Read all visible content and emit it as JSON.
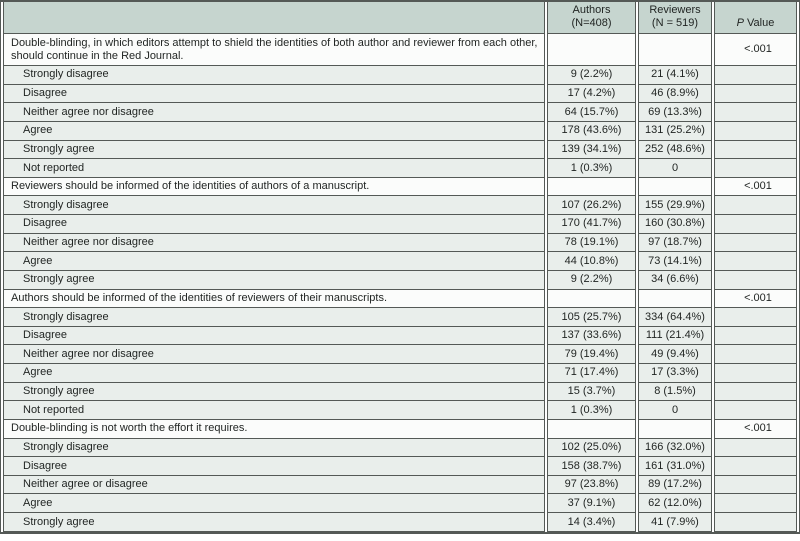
{
  "colors": {
    "header_bg": "#c6d5cf",
    "data_row_bg": "#e9eeeb",
    "section_row_bg": "#fbfcfb",
    "border": "#545956",
    "text": "#1f2321"
  },
  "table": {
    "header": {
      "question_column": "",
      "authors_line1": "Authors",
      "authors_line2": "(N=408)",
      "reviewers_line1": "Reviewers",
      "reviewers_line2": "(N = 519)",
      "p_value_italic": "P",
      "p_value_rest": " Value"
    },
    "sections": [
      {
        "statement": "Double-blinding, in which editors attempt to shield the identities of both author and reviewer from each other, should continue in the Red Journal.",
        "p_value": "<.001",
        "rows": [
          {
            "label": "Strongly disagree",
            "authors": "9 (2.2%)",
            "reviewers": "21 (4.1%)"
          },
          {
            "label": "Disagree",
            "authors": "17 (4.2%)",
            "reviewers": "46 (8.9%)"
          },
          {
            "label": "Neither agree nor disagree",
            "authors": "64 (15.7%)",
            "reviewers": "69 (13.3%)"
          },
          {
            "label": "Agree",
            "authors": "178 (43.6%)",
            "reviewers": "131 (25.2%)"
          },
          {
            "label": "Strongly agree",
            "authors": "139 (34.1%)",
            "reviewers": "252 (48.6%)"
          },
          {
            "label": "Not reported",
            "authors": "1 (0.3%)",
            "reviewers": "0"
          }
        ]
      },
      {
        "statement": "Reviewers should be informed of the identities of authors of a manuscript.",
        "p_value": "<.001",
        "rows": [
          {
            "label": "Strongly disagree",
            "authors": "107 (26.2%)",
            "reviewers": "155 (29.9%)"
          },
          {
            "label": "Disagree",
            "authors": "170 (41.7%)",
            "reviewers": "160 (30.8%)"
          },
          {
            "label": "Neither agree nor disagree",
            "authors": "78 (19.1%)",
            "reviewers": "97 (18.7%)"
          },
          {
            "label": "Agree",
            "authors": "44 (10.8%)",
            "reviewers": "73 (14.1%)"
          },
          {
            "label": "Strongly agree",
            "authors": "9 (2.2%)",
            "reviewers": "34 (6.6%)"
          }
        ]
      },
      {
        "statement": "Authors should be informed of the identities of reviewers of their manuscripts.",
        "p_value": "<.001",
        "rows": [
          {
            "label": "Strongly disagree",
            "authors": "105 (25.7%)",
            "reviewers": "334 (64.4%)"
          },
          {
            "label": "Disagree",
            "authors": "137 (33.6%)",
            "reviewers": "111 (21.4%)"
          },
          {
            "label": "Neither agree nor disagree",
            "authors": "79 (19.4%)",
            "reviewers": "49 (9.4%)"
          },
          {
            "label": "Agree",
            "authors": "71 (17.4%)",
            "reviewers": "17 (3.3%)"
          },
          {
            "label": "Strongly agree",
            "authors": "15 (3.7%)",
            "reviewers": "8 (1.5%)"
          },
          {
            "label": "Not reported",
            "authors": "1 (0.3%)",
            "reviewers": "0"
          }
        ]
      },
      {
        "statement": "Double-blinding is not worth the effort it requires.",
        "p_value": "<.001",
        "rows": [
          {
            "label": "Strongly disagree",
            "authors": "102 (25.0%)",
            "reviewers": "166 (32.0%)"
          },
          {
            "label": "Disagree",
            "authors": "158 (38.7%)",
            "reviewers": "161 (31.0%)"
          },
          {
            "label": "Neither agree or disagree",
            "authors": "97 (23.8%)",
            "reviewers": "89 (17.2%)"
          },
          {
            "label": "Agree",
            "authors": "37 (9.1%)",
            "reviewers": "62 (12.0%)"
          },
          {
            "label": "Strongly agree",
            "authors": "14 (3.4%)",
            "reviewers": "41 (7.9%)"
          }
        ]
      }
    ]
  }
}
